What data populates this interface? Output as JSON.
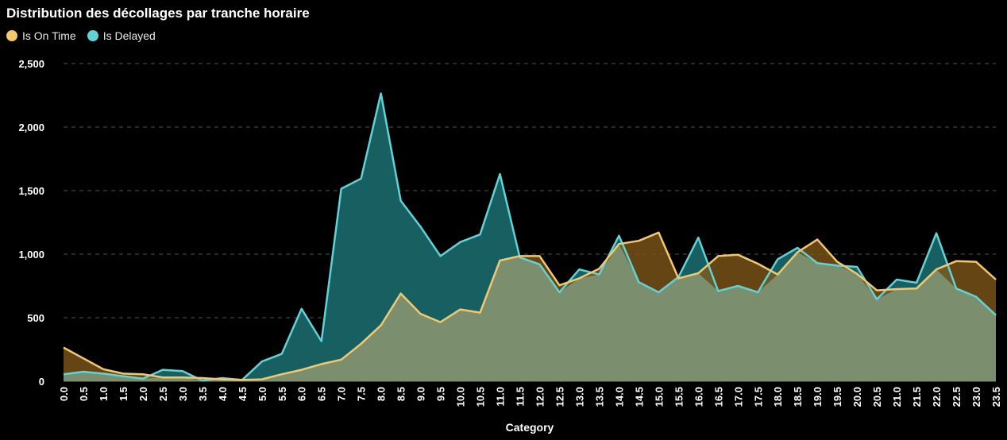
{
  "chart_data": {
    "type": "area",
    "title": "Distribution des décollages par tranche horaire",
    "xlabel": "Category",
    "ylabel": "",
    "ylim": [
      0,
      2500
    ],
    "yticks": [
      0,
      500,
      1000,
      1500,
      2000,
      2500
    ],
    "ytick_labels": [
      "0",
      "500",
      "1,000",
      "1,500",
      "2,000",
      "2,500"
    ],
    "grid": true,
    "legend": "top-left",
    "categories": [
      "0.0",
      "0.5",
      "1.0",
      "1.5",
      "2.0",
      "2.5",
      "3.0",
      "3.5",
      "4.0",
      "4.5",
      "5.0",
      "5.5",
      "6.0",
      "6.5",
      "7.0",
      "7.5",
      "8.0",
      "8.5",
      "9.0",
      "9.5",
      "10.0",
      "10.5",
      "11.0",
      "11.5",
      "12.0",
      "12.5",
      "13.0",
      "13.5",
      "14.0",
      "14.5",
      "15.0",
      "15.5",
      "16.0",
      "16.5",
      "17.0",
      "17.5",
      "18.0",
      "18.5",
      "19.0",
      "19.5",
      "20.0",
      "20.5",
      "21.0",
      "21.5",
      "22.0",
      "22.5",
      "23.0",
      "23.5"
    ],
    "series": [
      {
        "name": "Is On Time",
        "color": "#f2c86e",
        "fill": "#83581b",
        "values": [
          265,
          180,
          95,
          60,
          55,
          30,
          30,
          25,
          15,
          10,
          15,
          55,
          90,
          135,
          170,
          295,
          440,
          690,
          530,
          465,
          565,
          540,
          950,
          985,
          985,
          755,
          810,
          885,
          1080,
          1105,
          1170,
          810,
          850,
          985,
          995,
          925,
          840,
          1015,
          1115,
          940,
          845,
          715,
          725,
          730,
          880,
          945,
          940,
          800
        ]
      },
      {
        "name": "Is Delayed",
        "color": "#5fd3d8",
        "fill": "#185f61",
        "values": [
          55,
          75,
          60,
          40,
          20,
          90,
          80,
          5,
          25,
          10,
          155,
          215,
          570,
          315,
          1515,
          1595,
          2265,
          1420,
          1215,
          985,
          1095,
          1155,
          1630,
          975,
          920,
          700,
          880,
          840,
          1145,
          780,
          700,
          820,
          1130,
          710,
          750,
          700,
          960,
          1050,
          930,
          910,
          900,
          645,
          800,
          775,
          1165,
          730,
          665,
          520
        ]
      }
    ]
  }
}
